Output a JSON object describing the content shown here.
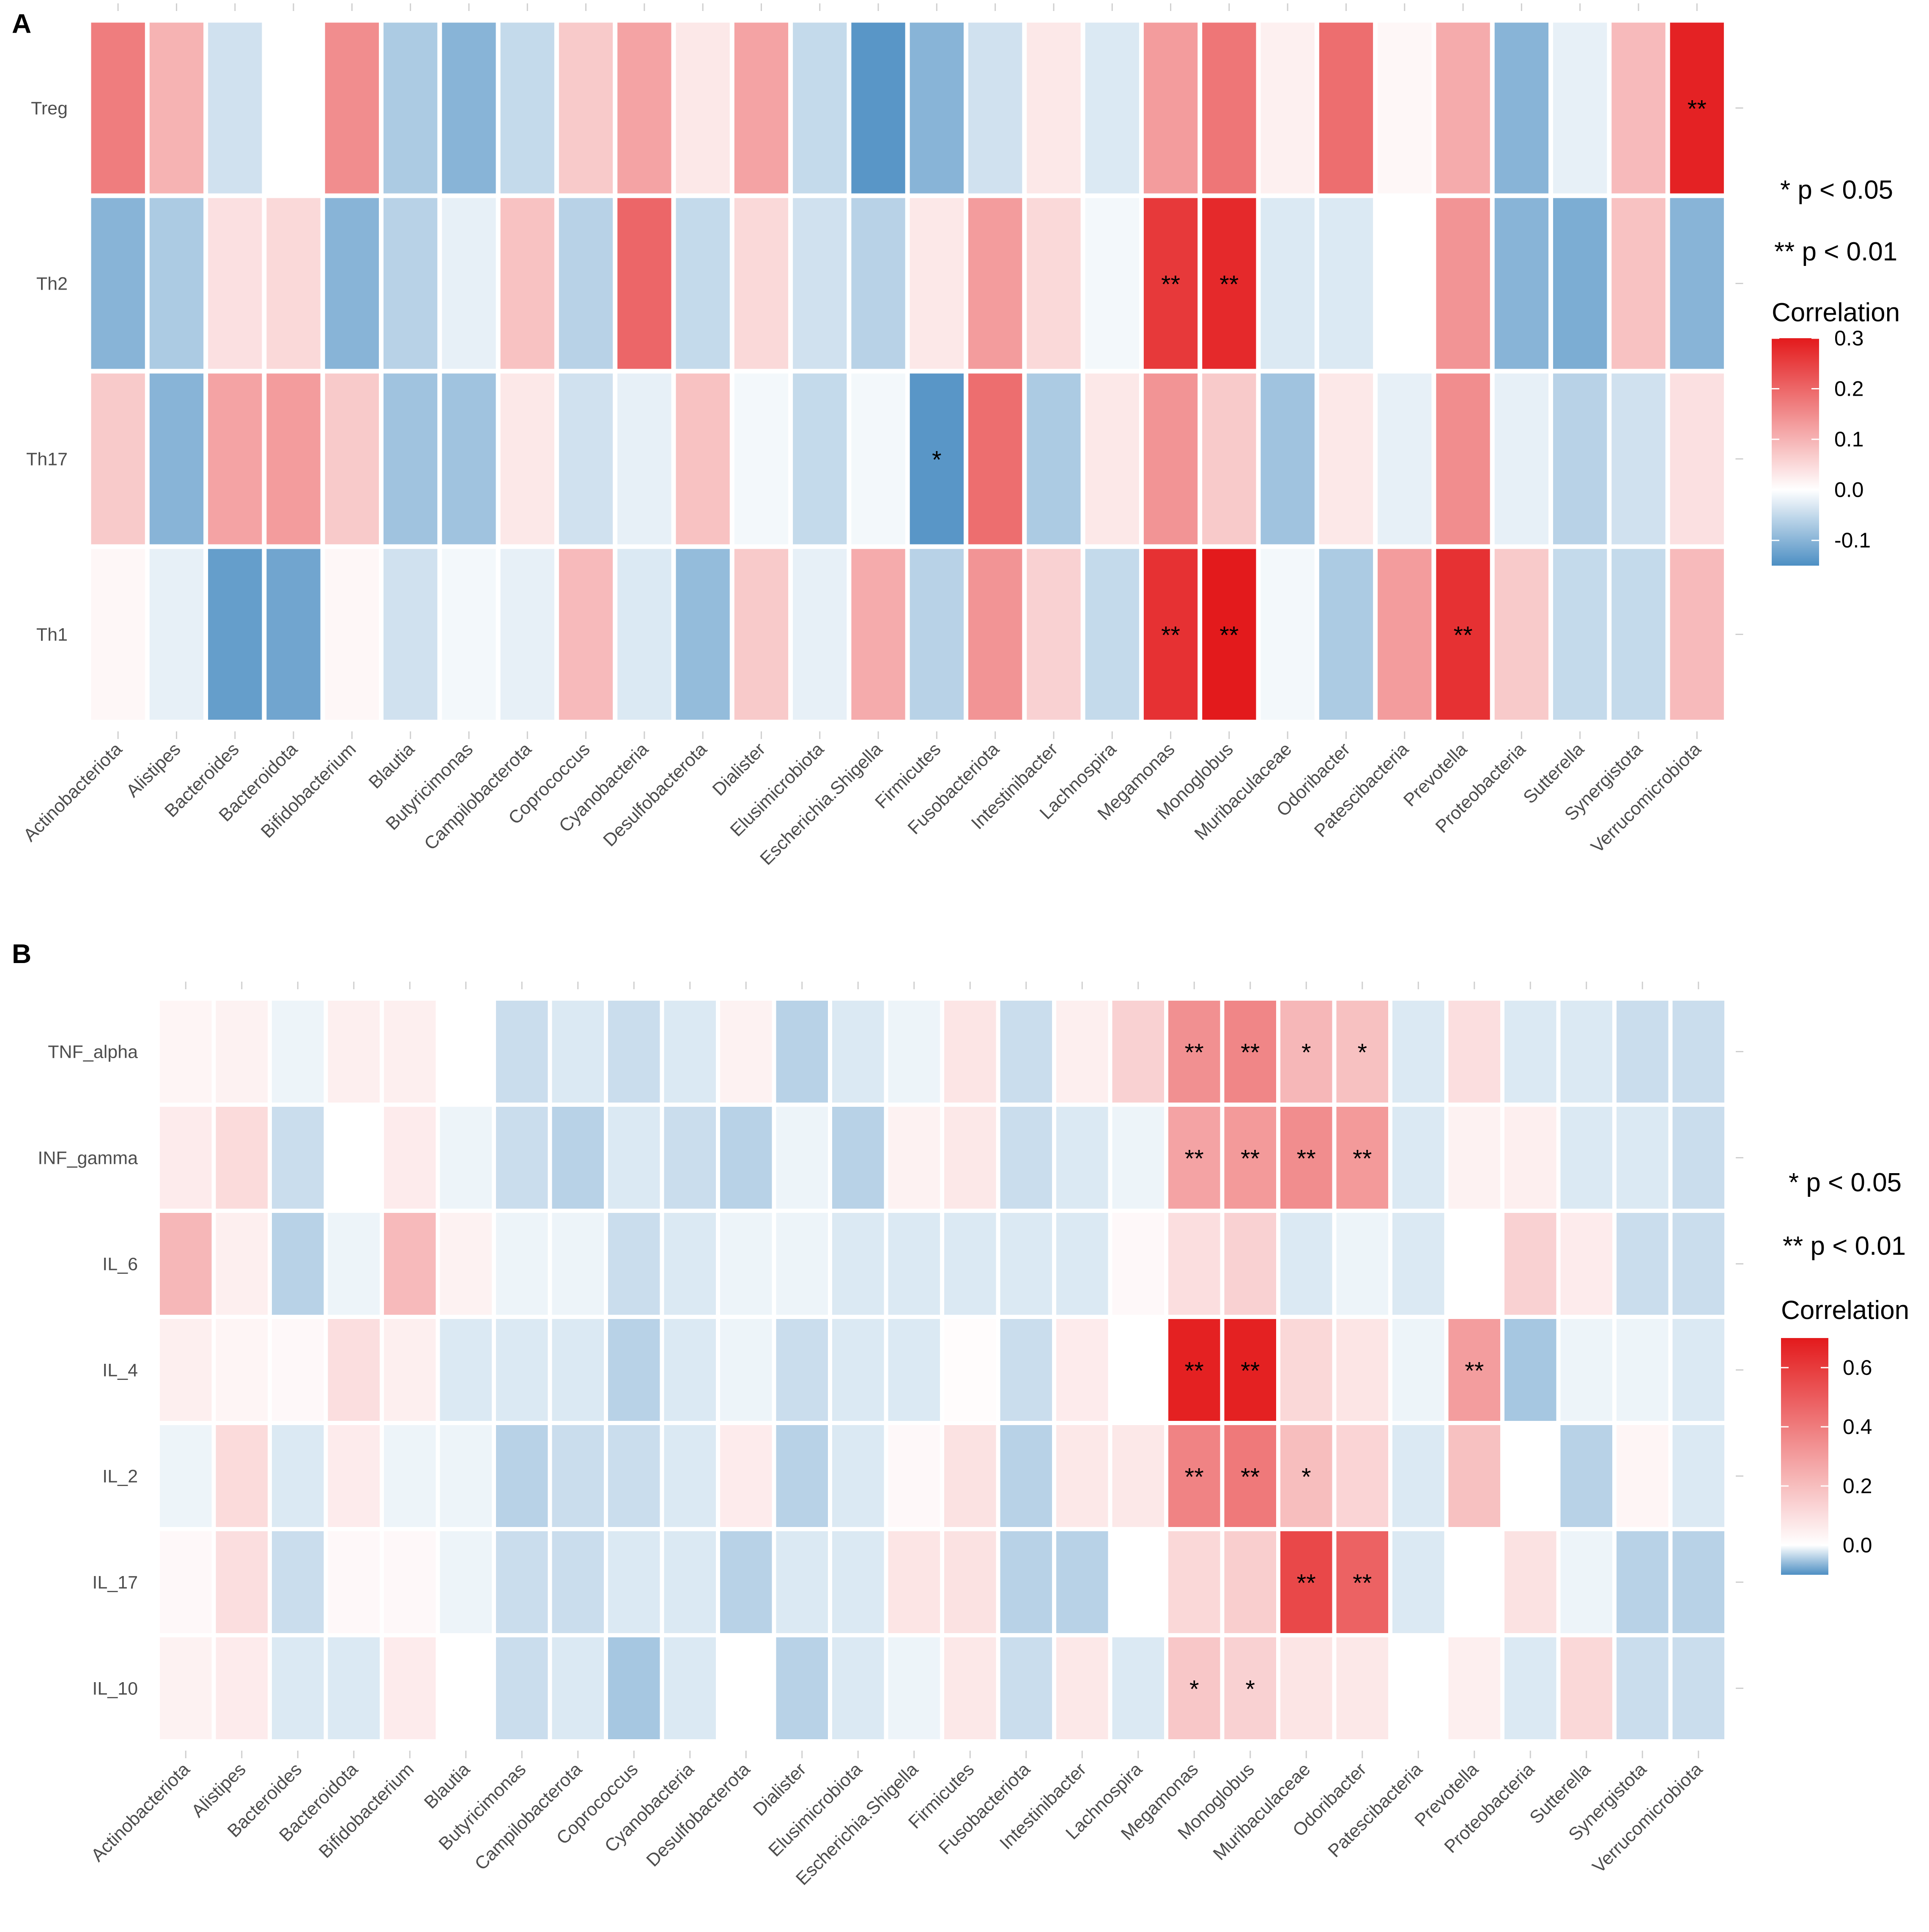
{
  "colors": {
    "neg": "#4d8fc3",
    "zero": "#ffffff",
    "pos": "#e31a1c",
    "cell_border": "#ffffff"
  },
  "legend_text": {
    "p05": "* p < 0.05",
    "p01": "** p < 0.01"
  },
  "chart_data": [
    {
      "type": "heatmap",
      "panel": "A",
      "legend_title": "Correlation",
      "color_limits": [
        -0.15,
        0.3
      ],
      "legend_ticks": [
        0.3,
        0.2,
        0.1,
        0.0,
        -0.1
      ],
      "legend_tick_labels": [
        "0.3",
        "0.2",
        "0.1",
        "0.0",
        "-0.1"
      ],
      "rows": [
        "Treg",
        "Th2",
        "Th17",
        "Th1"
      ],
      "columns": [
        "Actinobacteriota",
        "Alistipes",
        "Bacteroides",
        "Bacteroidota",
        "Bifidobacterium",
        "Blautia",
        "Butyricimonas",
        "Campilobacterota",
        "Coprococcus",
        "Cyanobacteria",
        "Desulfobacterota",
        "Dialister",
        "Elusimicrobiota",
        "Escherichia.Shigella",
        "Firmicutes",
        "Fusobacteriota",
        "Intestinibacter",
        "Lachnospira",
        "Megamonas",
        "Monoglobus",
        "Muribaculaceae",
        "Odoribacter",
        "Patescibacteria",
        "Prevotella",
        "Proteobacteria",
        "Sutterella",
        "Synergistota",
        "Verrucomicrobiota"
      ],
      "values": [
        [
          0.17,
          0.1,
          -0.04,
          0.0,
          0.15,
          -0.07,
          -0.1,
          -0.05,
          0.07,
          0.12,
          0.03,
          0.12,
          -0.05,
          -0.14,
          -0.1,
          -0.04,
          0.03,
          -0.03,
          0.13,
          0.18,
          0.02,
          0.19,
          0.01,
          0.11,
          -0.1,
          -0.02,
          0.09,
          0.29
        ],
        [
          -0.1,
          -0.07,
          0.04,
          0.05,
          -0.1,
          -0.06,
          -0.02,
          0.08,
          -0.06,
          0.2,
          -0.05,
          0.05,
          -0.04,
          -0.06,
          0.03,
          0.13,
          0.05,
          -0.01,
          0.26,
          0.28,
          -0.03,
          -0.03,
          0.0,
          0.14,
          -0.1,
          -0.11,
          0.08,
          -0.1
        ],
        [
          0.07,
          -0.1,
          0.12,
          0.13,
          0.07,
          -0.08,
          -0.08,
          0.03,
          -0.04,
          -0.02,
          0.08,
          -0.01,
          -0.05,
          -0.01,
          -0.14,
          0.19,
          -0.07,
          0.03,
          0.14,
          0.07,
          -0.08,
          0.03,
          -0.02,
          0.15,
          -0.02,
          -0.06,
          -0.04,
          0.04
        ],
        [
          0.01,
          -0.02,
          -0.13,
          -0.12,
          0.01,
          -0.04,
          -0.01,
          -0.02,
          0.09,
          -0.03,
          -0.09,
          0.07,
          -0.02,
          0.11,
          -0.06,
          0.14,
          0.06,
          -0.05,
          0.27,
          0.31,
          -0.01,
          -0.07,
          0.13,
          0.27,
          0.07,
          -0.05,
          -0.05,
          0.09
        ]
      ],
      "significance": [
        [
          "",
          "",
          "",
          "",
          "",
          "",
          "",
          "",
          "",
          "",
          "",
          "",
          "",
          "",
          "",
          "",
          "",
          "",
          "",
          "",
          "",
          "",
          "",
          "",
          "",
          "",
          "",
          "**"
        ],
        [
          "",
          "",
          "",
          "",
          "",
          "",
          "",
          "",
          "",
          "",
          "",
          "",
          "",
          "",
          "",
          "",
          "",
          "",
          "**",
          "**",
          "",
          "",
          "",
          "",
          "",
          "",
          "",
          ""
        ],
        [
          "",
          "",
          "",
          "",
          "",
          "",
          "",
          "",
          "",
          "",
          "",
          "",
          "",
          "",
          "*",
          "",
          "",
          "",
          "",
          "",
          "",
          "",
          "",
          "",
          "",
          "",
          "",
          ""
        ],
        [
          "",
          "",
          "",
          "",
          "",
          "",
          "",
          "",
          "",
          "",
          "",
          "",
          "",
          "",
          "",
          "",
          "",
          "",
          "**",
          "**",
          "",
          "",
          "",
          "**",
          "",
          "",
          "",
          ""
        ]
      ]
    },
    {
      "type": "heatmap",
      "panel": "B",
      "legend_title": "Correlation",
      "color_limits": [
        -0.1,
        0.7
      ],
      "legend_ticks": [
        0.6,
        0.4,
        0.2,
        0.0
      ],
      "legend_tick_labels": [
        "0.6",
        "0.4",
        "0.2",
        "0.0"
      ],
      "rows": [
        "TNF_alpha",
        "INF_gamma",
        "IL_6",
        "IL_4",
        "IL_2",
        "IL_17",
        "IL_10"
      ],
      "columns": [
        "Actinobacteriota",
        "Alistipes",
        "Bacteroides",
        "Bacteroidota",
        "Bifidobacterium",
        "Blautia",
        "Butyricimonas",
        "Campilobacterota",
        "Coprococcus",
        "Cyanobacteria",
        "Desulfobacterota",
        "Dialister",
        "Elusimicrobiota",
        "Escherichia.Shigella",
        "Firmicutes",
        "Fusobacteriota",
        "Intestinibacter",
        "Lachnospira",
        "Megamonas",
        "Monoglobus",
        "Muribaculaceae",
        "Odoribacter",
        "Patescibacteria",
        "Prevotella",
        "Proteobacteria",
        "Sutterella",
        "Synergistota",
        "Verrucomicrobiota"
      ],
      "values": [
        [
          0.03,
          0.04,
          -0.01,
          0.05,
          0.05,
          0.0,
          -0.03,
          -0.02,
          -0.03,
          -0.02,
          0.04,
          -0.04,
          -0.02,
          -0.01,
          0.08,
          -0.03,
          0.05,
          0.14,
          0.34,
          0.37,
          0.22,
          0.19,
          -0.02,
          0.1,
          -0.02,
          -0.02,
          -0.03,
          -0.03
        ],
        [
          0.06,
          0.11,
          -0.03,
          0.0,
          0.06,
          -0.01,
          -0.03,
          -0.04,
          -0.02,
          -0.03,
          -0.04,
          -0.01,
          -0.04,
          0.04,
          0.07,
          -0.03,
          -0.02,
          -0.01,
          0.28,
          0.31,
          0.35,
          0.31,
          -0.02,
          0.04,
          0.05,
          -0.02,
          -0.02,
          -0.03
        ],
        [
          0.22,
          0.05,
          -0.04,
          -0.01,
          0.21,
          0.04,
          -0.01,
          -0.01,
          -0.03,
          -0.02,
          -0.01,
          -0.01,
          -0.02,
          -0.02,
          -0.02,
          -0.02,
          -0.02,
          0.02,
          0.1,
          0.14,
          -0.02,
          -0.01,
          -0.02,
          0.0,
          0.14,
          0.06,
          -0.03,
          -0.03
        ],
        [
          0.05,
          0.03,
          0.02,
          0.1,
          0.05,
          -0.02,
          -0.02,
          -0.02,
          -0.04,
          -0.02,
          -0.01,
          -0.03,
          -0.02,
          -0.02,
          0.01,
          -0.03,
          0.06,
          0.0,
          0.68,
          0.68,
          0.12,
          0.08,
          -0.01,
          0.3,
          -0.05,
          -0.01,
          -0.01,
          -0.02
        ],
        [
          -0.01,
          0.11,
          -0.02,
          0.06,
          -0.01,
          -0.01,
          -0.04,
          -0.03,
          -0.03,
          -0.02,
          0.06,
          -0.04,
          -0.02,
          0.02,
          0.09,
          -0.04,
          0.07,
          0.07,
          0.38,
          0.41,
          0.2,
          0.13,
          -0.02,
          0.19,
          0.0,
          -0.04,
          0.03,
          -0.02
        ],
        [
          0.02,
          0.1,
          -0.03,
          0.02,
          0.02,
          -0.01,
          -0.03,
          -0.03,
          -0.02,
          -0.02,
          -0.04,
          -0.02,
          -0.02,
          0.08,
          0.09,
          -0.04,
          -0.04,
          0.0,
          0.12,
          0.15,
          0.56,
          0.48,
          -0.02,
          0.0,
          0.09,
          -0.01,
          -0.04,
          -0.04
        ],
        [
          0.04,
          0.06,
          -0.02,
          -0.02,
          0.06,
          0.0,
          -0.03,
          -0.02,
          -0.05,
          -0.02,
          0.0,
          -0.04,
          -0.02,
          -0.01,
          0.07,
          -0.03,
          0.07,
          -0.02,
          0.17,
          0.14,
          0.08,
          0.07,
          0.0,
          0.05,
          -0.02,
          0.12,
          -0.03,
          -0.03
        ]
      ],
      "significance": [
        [
          "",
          "",
          "",
          "",
          "",
          "",
          "",
          "",
          "",
          "",
          "",
          "",
          "",
          "",
          "",
          "",
          "",
          "",
          "**",
          "**",
          "*",
          "*",
          "",
          "",
          "",
          "",
          "",
          ""
        ],
        [
          "",
          "",
          "",
          "",
          "",
          "",
          "",
          "",
          "",
          "",
          "",
          "",
          "",
          "",
          "",
          "",
          "",
          "",
          "**",
          "**",
          "**",
          "**",
          "",
          "",
          "",
          "",
          "",
          ""
        ],
        [
          "",
          "",
          "",
          "",
          "",
          "",
          "",
          "",
          "",
          "",
          "",
          "",
          "",
          "",
          "",
          "",
          "",
          "",
          "",
          "",
          "",
          "",
          "",
          "",
          "",
          "",
          "",
          ""
        ],
        [
          "",
          "",
          "",
          "",
          "",
          "",
          "",
          "",
          "",
          "",
          "",
          "",
          "",
          "",
          "",
          "",
          "",
          "",
          "**",
          "**",
          "",
          "",
          "",
          "**",
          "",
          "",
          "",
          ""
        ],
        [
          "",
          "",
          "",
          "",
          "",
          "",
          "",
          "",
          "",
          "",
          "",
          "",
          "",
          "",
          "",
          "",
          "",
          "",
          "**",
          "**",
          "*",
          "",
          "",
          "",
          "",
          "",
          "",
          ""
        ],
        [
          "",
          "",
          "",
          "",
          "",
          "",
          "",
          "",
          "",
          "",
          "",
          "",
          "",
          "",
          "",
          "",
          "",
          "",
          "",
          "",
          "**",
          "**",
          "",
          "",
          "",
          "",
          "",
          ""
        ],
        [
          "",
          "",
          "",
          "",
          "",
          "",
          "",
          "",
          "",
          "",
          "",
          "",
          "",
          "",
          "",
          "",
          "",
          "",
          "*",
          "*",
          "",
          "",
          "",
          "",
          "",
          "",
          "",
          ""
        ]
      ]
    }
  ]
}
